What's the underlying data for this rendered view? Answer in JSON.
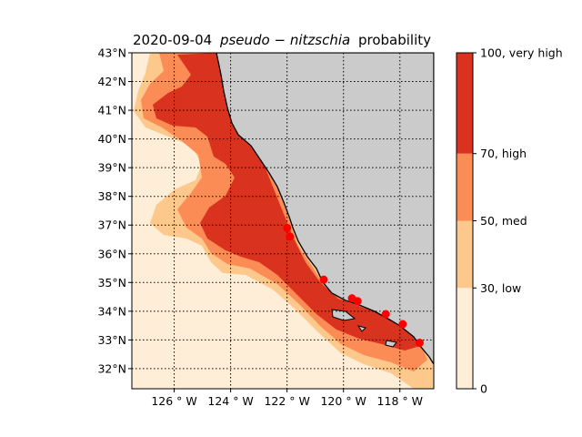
{
  "title": {
    "date": "2020-09-04",
    "species": "pseudo − nitzschia",
    "suffix": "probability"
  },
  "map": {
    "lat_range": [
      31.3,
      43.0
    ],
    "lon_range": [
      -127.5,
      -116.8
    ],
    "lat_ticks": [
      {
        "value": 32,
        "label": "32°N"
      },
      {
        "value": 33,
        "label": "33°N"
      },
      {
        "value": 34,
        "label": "34°N"
      },
      {
        "value": 35,
        "label": "35°N"
      },
      {
        "value": 36,
        "label": "36°N"
      },
      {
        "value": 37,
        "label": "37°N"
      },
      {
        "value": 38,
        "label": "38°N"
      },
      {
        "value": 39,
        "label": "39°N"
      },
      {
        "value": 40,
        "label": "40°N"
      },
      {
        "value": 41,
        "label": "41°N"
      },
      {
        "value": 42,
        "label": "42°N"
      },
      {
        "value": 43,
        "label": "43°N"
      }
    ],
    "lon_ticks": [
      {
        "value": -126,
        "label": "126 ° W"
      },
      {
        "value": -124,
        "label": "124 ° W"
      },
      {
        "value": -122,
        "label": "122 ° W"
      },
      {
        "value": -120,
        "label": "120 ° W"
      },
      {
        "value": -118,
        "label": "118 ° W"
      }
    ],
    "gridlines": true,
    "land_color": "#cbcbcb",
    "observation_stations": [
      {
        "lon": -122.0,
        "lat": 36.9
      },
      {
        "lon": -121.9,
        "lat": 36.6
      },
      {
        "lon": -120.7,
        "lat": 35.1
      },
      {
        "lon": -119.7,
        "lat": 34.45
      },
      {
        "lon": -119.5,
        "lat": 34.35
      },
      {
        "lon": -118.5,
        "lat": 33.9
      },
      {
        "lon": -117.9,
        "lat": 33.55
      },
      {
        "lon": -117.3,
        "lat": 32.9
      }
    ],
    "station_color": "#ff0000"
  },
  "colorbar": {
    "levels": [
      {
        "from": 0,
        "to": 30,
        "color": "#feedd7",
        "label": "0"
      },
      {
        "from": 30,
        "to": 50,
        "color": "#fdc88c",
        "label": "30, low"
      },
      {
        "from": 50,
        "to": 70,
        "color": "#fc8c55",
        "label": "50, med"
      },
      {
        "from": 70,
        "to": 100,
        "color": "#d93320",
        "label": "70, high"
      }
    ],
    "top_label": "100, very high"
  }
}
